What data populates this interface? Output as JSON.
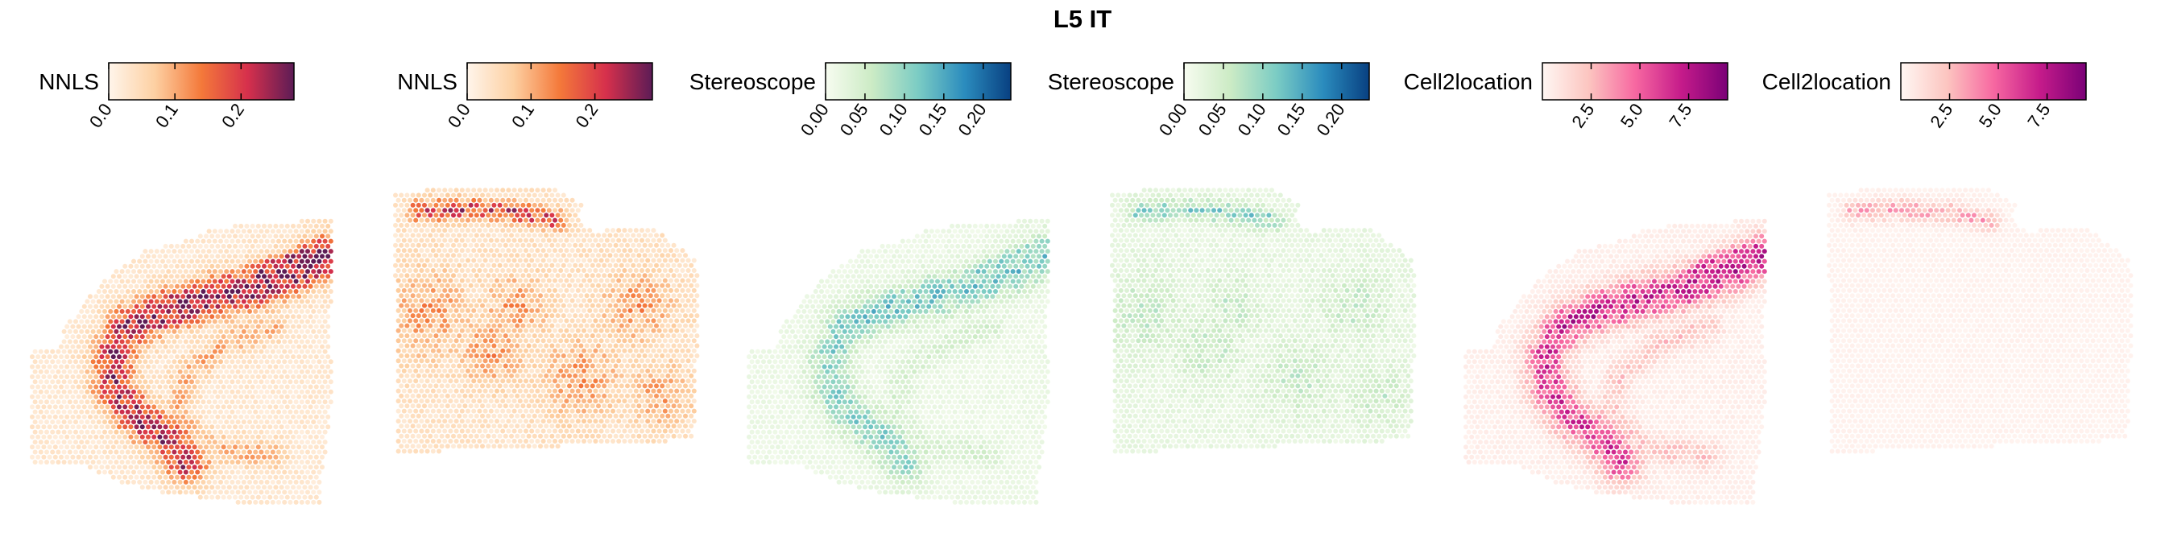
{
  "figure": {
    "title": "L5 IT"
  },
  "chart_data": [
    {
      "type": "heatmap",
      "method": "NNLS",
      "legend_title": "NNLS",
      "colorbar": {
        "min": 0.0,
        "max": 0.28,
        "ticks": [
          "0.0",
          "0.1",
          "0.2"
        ],
        "tick_values": [
          0.0,
          0.1,
          0.2
        ],
        "colors": [
          "#fff5eb",
          "#fdd0a2",
          "#f4793a",
          "#d6304c",
          "#5c1c56"
        ]
      },
      "section": "A",
      "pattern": "cortical_band_strong",
      "background_level": 0.025,
      "peak_value": 0.25
    },
    {
      "type": "heatmap",
      "method": "NNLS",
      "legend_title": "NNLS",
      "colorbar": {
        "min": 0.0,
        "max": 0.29,
        "ticks": [
          "0.0",
          "0.1",
          "0.2"
        ],
        "tick_values": [
          0.0,
          0.1,
          0.2
        ],
        "colors": [
          "#fff5eb",
          "#fdd0a2",
          "#f4793a",
          "#d6304c",
          "#5c1c56"
        ]
      },
      "section": "B",
      "pattern": "top_band_diffuse",
      "background_level": 0.035,
      "peak_value": 0.18
    },
    {
      "type": "heatmap",
      "method": "Stereoscope",
      "legend_title": "Stereoscope",
      "colorbar": {
        "min": 0.0,
        "max": 0.235,
        "ticks": [
          "0.00",
          "0.05",
          "0.10",
          "0.15",
          "0.20"
        ],
        "tick_values": [
          0.0,
          0.05,
          0.1,
          0.15,
          0.2
        ],
        "colors": [
          "#f7fcf0",
          "#ccebc5",
          "#7bccc4",
          "#2b8cbe",
          "#084081"
        ]
      },
      "section": "A",
      "pattern": "cortical_band_moderate",
      "background_level": 0.015,
      "peak_value": 0.14
    },
    {
      "type": "heatmap",
      "method": "Stereoscope",
      "legend_title": "Stereoscope",
      "colorbar": {
        "min": 0.0,
        "max": 0.235,
        "ticks": [
          "0.00",
          "0.05",
          "0.10",
          "0.15",
          "0.20"
        ],
        "tick_values": [
          0.0,
          0.05,
          0.1,
          0.15,
          0.2
        ],
        "colors": [
          "#f7fcf0",
          "#ccebc5",
          "#7bccc4",
          "#2b8cbe",
          "#084081"
        ]
      },
      "section": "B",
      "pattern": "top_band_sparse",
      "background_level": 0.02,
      "peak_value": 0.12
    },
    {
      "type": "heatmap",
      "method": "Cell2location",
      "legend_title": "Cell2location",
      "colorbar": {
        "min": 0.0,
        "max": 9.5,
        "ticks": [
          "2.5",
          "5.0",
          "7.5"
        ],
        "tick_values": [
          2.5,
          5.0,
          7.5
        ],
        "colors": [
          "#fff7f3",
          "#fcc5c0",
          "#f768a1",
          "#c51b8a",
          "#7a0177"
        ]
      },
      "section": "A",
      "pattern": "cortical_band_strong",
      "background_level": 0.4,
      "peak_value": 7.0
    },
    {
      "type": "heatmap",
      "method": "Cell2location",
      "legend_title": "Cell2location",
      "colorbar": {
        "min": 0.0,
        "max": 9.5,
        "ticks": [
          "2.5",
          "5.0",
          "7.5"
        ],
        "tick_values": [
          2.5,
          5.0,
          7.5
        ],
        "colors": [
          "#fff7f3",
          "#fcc5c0",
          "#f768a1",
          "#c51b8a",
          "#7a0177"
        ]
      },
      "section": "B",
      "pattern": "top_band_faint",
      "background_level": 0.25,
      "peak_value": 3.0
    }
  ]
}
